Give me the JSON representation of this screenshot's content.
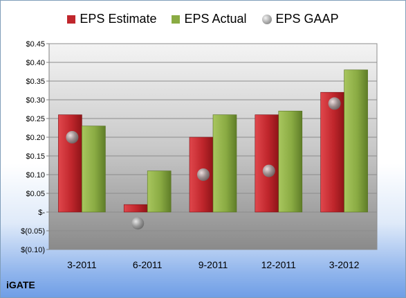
{
  "legend": {
    "estimate": "EPS Estimate",
    "actual": "EPS Actual",
    "gaap": "EPS GAAP"
  },
  "company": "iGATE",
  "colors": {
    "estimate": "#c0262c",
    "actual": "#8aab43",
    "gaap": "#9a9a9a"
  },
  "chart_data": {
    "type": "bar",
    "categories": [
      "3-2011",
      "6-2011",
      "9-2011",
      "12-2011",
      "3-2012"
    ],
    "series": [
      {
        "name": "EPS Estimate",
        "values": [
          0.26,
          0.02,
          0.2,
          0.26,
          0.32
        ]
      },
      {
        "name": "EPS Actual",
        "values": [
          0.23,
          0.11,
          0.26,
          0.27,
          0.38
        ]
      },
      {
        "name": "EPS GAAP",
        "marker": "circle",
        "values": [
          0.2,
          -0.03,
          0.1,
          0.11,
          0.29
        ]
      }
    ],
    "ylim": [
      -0.1,
      0.45
    ],
    "yticks": [
      0.45,
      0.4,
      0.35,
      0.3,
      0.25,
      0.2,
      0.15,
      0.1,
      0.05,
      0.0,
      -0.05,
      -0.1
    ],
    "ytick_labels": [
      "$0.45",
      "$0.40",
      "$0.35",
      "$0.30",
      "$0.25",
      "$0.20",
      "$0.15",
      "$0.10",
      "$0.05",
      "$-",
      "$(0.05)",
      "$(0.10)"
    ],
    "legend_position": "top",
    "grid": true
  }
}
